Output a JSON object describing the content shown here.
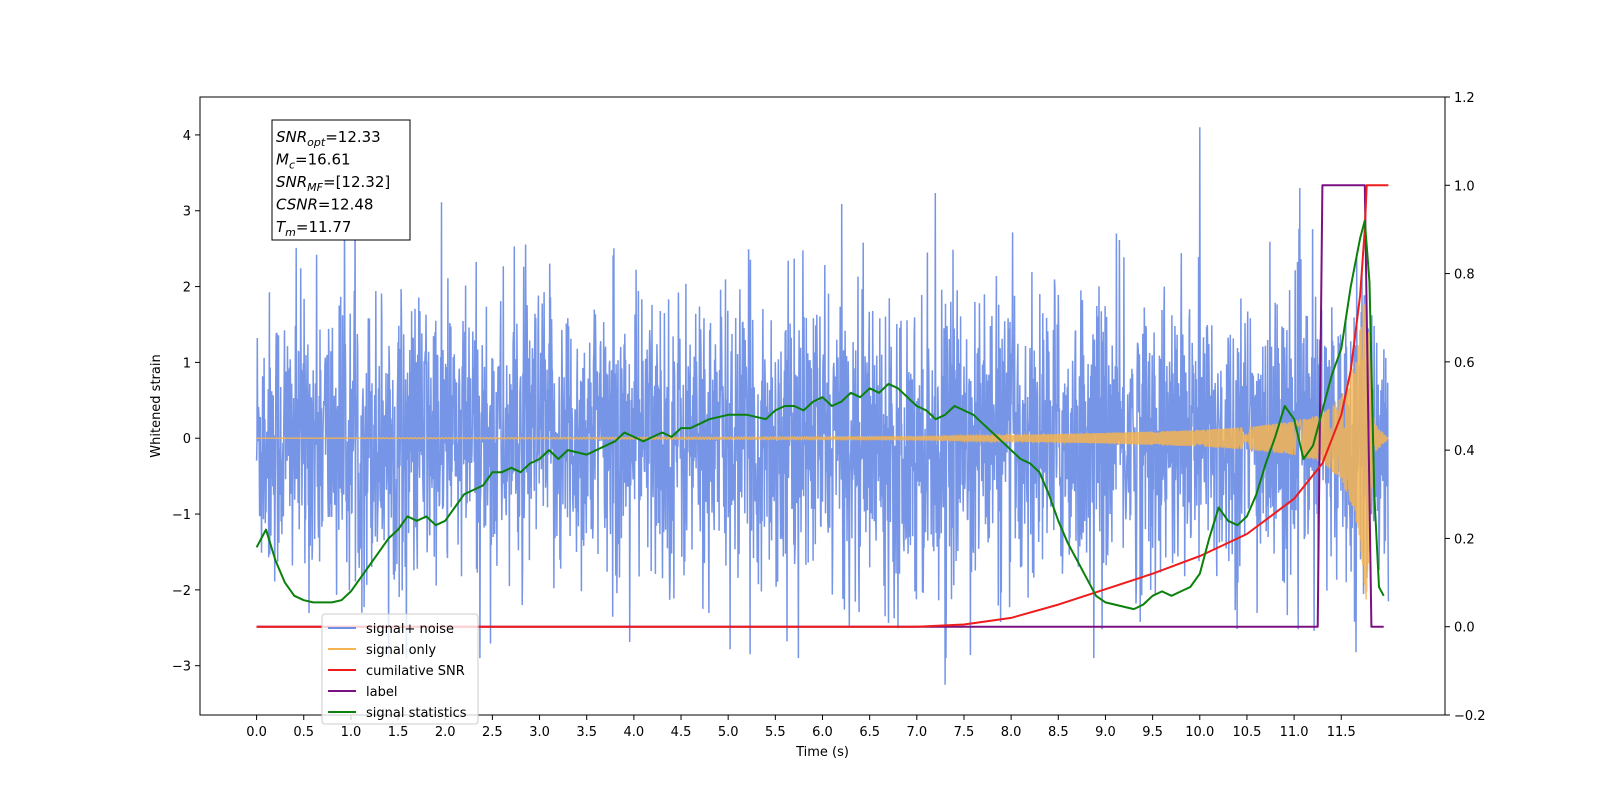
{
  "chart_data": {
    "type": "line",
    "xlabel": "Time (s)",
    "ylabel": "Whitened strain",
    "xlim": [
      -0.6,
      12.6
    ],
    "ylim": [
      -3.65,
      4.5
    ],
    "y2lim": [
      -0.2,
      1.2
    ],
    "x_ticks": [
      0.0,
      0.5,
      1.0,
      1.5,
      2.0,
      2.5,
      3.0,
      3.5,
      4.0,
      4.5,
      5.0,
      5.5,
      6.0,
      6.5,
      7.0,
      7.5,
      8.0,
      8.5,
      9.0,
      9.5,
      10.0,
      10.5,
      11.0,
      11.5
    ],
    "x_tick_labels": [
      "0.0",
      "0.5",
      "1.0",
      "1.5",
      "2.0",
      "2.5",
      "3.0",
      "3.5",
      "4.0",
      "4.5",
      "5.0",
      "5.5",
      "6.0",
      "6.5",
      "7.0",
      "7.5",
      "8.0",
      "8.5",
      "9.0",
      "9.5",
      "10.0",
      "10.5",
      "11.0",
      "11.5"
    ],
    "y_ticks": [
      -3,
      -2,
      -1,
      0,
      1,
      2,
      3,
      4
    ],
    "y_tick_labels": [
      "−3",
      "−2",
      "−1",
      "0",
      "1",
      "2",
      "3",
      "4"
    ],
    "y2_ticks": [
      -0.2,
      0.0,
      0.2,
      0.4,
      0.6,
      0.8,
      1.0,
      1.2
    ],
    "y2_tick_labels": [
      "−0.2",
      "0.0",
      "0.2",
      "0.4",
      "0.6",
      "0.8",
      "1.0",
      "1.2"
    ],
    "grid": false,
    "legend_position": "lower-left",
    "series": [
      {
        "name": "signal+ noise",
        "color": "#6f8fe6",
        "axis": "left",
        "description_values": "dense noisy strain, mostly within [-2.5, 2.5], spikes up to 4.1 near t=10.0 and down to -3.25 near t=7.3",
        "t_range": [
          0.0,
          12.0
        ]
      },
      {
        "name": "signal only",
        "color": "#f5b451",
        "axis": "left",
        "chirp_amplitude_t": [
          0.0,
          7.0,
          8.0,
          9.0,
          10.0,
          10.5,
          11.0,
          11.3,
          11.5,
          11.65,
          11.72,
          11.77,
          11.8,
          11.85,
          12.0
        ],
        "chirp_amplitude_y": [
          0.0,
          0.02,
          0.04,
          0.07,
          0.11,
          0.15,
          0.22,
          0.32,
          0.55,
          1.0,
          1.6,
          2.2,
          1.2,
          0.2,
          0.0
        ]
      },
      {
        "name": "cumilative SNR",
        "color": "#ee1c1c",
        "axis": "right",
        "x": [
          0.0,
          7.0,
          7.5,
          8.0,
          8.5,
          9.0,
          9.5,
          10.0,
          10.5,
          11.0,
          11.3,
          11.5,
          11.6,
          11.7,
          11.75,
          11.77,
          12.0
        ],
        "y": [
          0.0,
          0.0,
          0.005,
          0.02,
          0.05,
          0.085,
          0.12,
          0.16,
          0.21,
          0.29,
          0.37,
          0.48,
          0.58,
          0.75,
          0.9,
          1.0,
          1.0
        ]
      },
      {
        "name": "label",
        "color": "#7b1080",
        "axis": "right",
        "x": [
          0.0,
          11.25,
          11.3,
          11.75,
          11.82,
          11.95
        ],
        "y": [
          0.0,
          0.0,
          1.0,
          1.0,
          0.0,
          0.0
        ]
      },
      {
        "name": "signal statistics",
        "color": "#0b800b",
        "axis": "right",
        "x": [
          0.0,
          0.1,
          0.2,
          0.3,
          0.4,
          0.5,
          0.6,
          0.8,
          0.9,
          1.0,
          1.1,
          1.2,
          1.3,
          1.4,
          1.5,
          1.6,
          1.7,
          1.8,
          1.9,
          2.0,
          2.1,
          2.2,
          2.3,
          2.4,
          2.5,
          2.6,
          2.7,
          2.8,
          2.9,
          3.0,
          3.1,
          3.2,
          3.3,
          3.5,
          3.7,
          3.8,
          3.9,
          4.0,
          4.1,
          4.2,
          4.3,
          4.4,
          4.5,
          4.6,
          4.7,
          4.8,
          5.0,
          5.2,
          5.4,
          5.5,
          5.6,
          5.7,
          5.8,
          5.9,
          6.0,
          6.1,
          6.2,
          6.3,
          6.4,
          6.5,
          6.6,
          6.7,
          6.8,
          6.9,
          7.0,
          7.1,
          7.2,
          7.3,
          7.4,
          7.5,
          7.6,
          7.7,
          7.8,
          7.9,
          8.0,
          8.1,
          8.2,
          8.3,
          8.4,
          8.5,
          8.6,
          8.7,
          8.8,
          8.9,
          9.0,
          9.1,
          9.2,
          9.3,
          9.4,
          9.5,
          9.6,
          9.7,
          9.8,
          9.9,
          10.0,
          10.1,
          10.2,
          10.3,
          10.4,
          10.5,
          10.6,
          10.7,
          10.8,
          10.9,
          11.0,
          11.1,
          11.2,
          11.3,
          11.4,
          11.5,
          11.6,
          11.7,
          11.75,
          11.8,
          11.85,
          11.9,
          11.95
        ],
        "y": [
          0.18,
          0.22,
          0.15,
          0.1,
          0.07,
          0.06,
          0.055,
          0.055,
          0.06,
          0.08,
          0.11,
          0.14,
          0.17,
          0.2,
          0.22,
          0.25,
          0.24,
          0.25,
          0.23,
          0.24,
          0.27,
          0.3,
          0.31,
          0.32,
          0.35,
          0.35,
          0.36,
          0.35,
          0.37,
          0.38,
          0.4,
          0.38,
          0.4,
          0.39,
          0.41,
          0.42,
          0.44,
          0.43,
          0.42,
          0.43,
          0.44,
          0.43,
          0.45,
          0.45,
          0.46,
          0.47,
          0.48,
          0.48,
          0.47,
          0.49,
          0.5,
          0.5,
          0.49,
          0.51,
          0.52,
          0.5,
          0.51,
          0.53,
          0.52,
          0.54,
          0.53,
          0.55,
          0.54,
          0.52,
          0.5,
          0.49,
          0.47,
          0.48,
          0.5,
          0.49,
          0.48,
          0.46,
          0.44,
          0.42,
          0.4,
          0.38,
          0.37,
          0.35,
          0.3,
          0.24,
          0.19,
          0.15,
          0.11,
          0.07,
          0.055,
          0.05,
          0.045,
          0.04,
          0.05,
          0.07,
          0.08,
          0.07,
          0.08,
          0.09,
          0.12,
          0.2,
          0.27,
          0.24,
          0.23,
          0.25,
          0.3,
          0.37,
          0.43,
          0.5,
          0.47,
          0.38,
          0.41,
          0.49,
          0.57,
          0.63,
          0.77,
          0.88,
          0.92,
          0.78,
          0.3,
          0.09,
          0.07
        ]
      }
    ],
    "annotations": [
      {
        "base": "SNR",
        "sub": "opt",
        "value": "=12.33"
      },
      {
        "base": "M",
        "sub": "c",
        "value": "=16.61"
      },
      {
        "base": "SNR",
        "sub": "MF",
        "value": "=[12.32]"
      },
      {
        "base": "CSNR",
        "sub": "",
        "value": "=12.48"
      },
      {
        "base": "T",
        "sub": "m",
        "value": "=11.77"
      }
    ],
    "legend_entries": [
      {
        "label": "signal+ noise",
        "color": "#6f8fe6"
      },
      {
        "label": "signal only",
        "color": "#f5b451"
      },
      {
        "label": "cumilative SNR",
        "color": "#ee1c1c"
      },
      {
        "label": "label",
        "color": "#7b1080"
      },
      {
        "label": "signal statistics",
        "color": "#0b800b"
      }
    ]
  }
}
